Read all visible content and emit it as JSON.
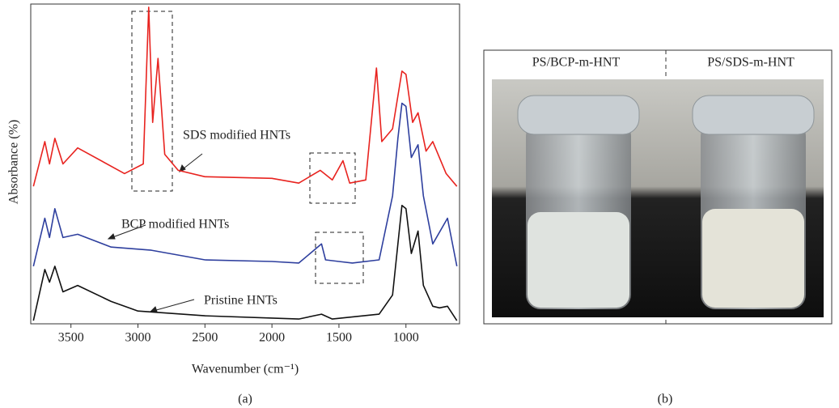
{
  "chart_data": {
    "type": "line",
    "x_label": "Wavenumber (cm⁻¹)",
    "y_label": "Absorbance (%)",
    "panel_a": "(a)",
    "panel_b": "(b)",
    "xlim": [
      3800,
      600
    ],
    "ylim": [
      0,
      100
    ],
    "xticks": [
      3500,
      3000,
      2500,
      2000,
      1500,
      1000
    ],
    "series": [
      {
        "name": "Pristine HNTs",
        "color": "#111111",
        "x": [
          3780,
          3695,
          3660,
          3620,
          3560,
          3450,
          3200,
          3000,
          2500,
          2000,
          1800,
          1630,
          1550,
          1200,
          1100,
          1060,
          1030,
          1000,
          960,
          910,
          870,
          800,
          750,
          690,
          620
        ],
        "values": [
          1,
          17,
          13,
          18,
          10,
          12,
          7,
          4,
          2.5,
          1.8,
          1.5,
          3,
          1.5,
          3,
          9,
          25,
          37,
          36,
          22,
          29,
          12,
          5.5,
          5,
          5.5,
          1
        ]
      },
      {
        "name": "BCP modified HNTs",
        "color": "#2e3f9e",
        "x": [
          3780,
          3695,
          3660,
          3620,
          3560,
          3450,
          3200,
          2900,
          2500,
          2000,
          1800,
          1630,
          1600,
          1500,
          1400,
          1200,
          1100,
          1060,
          1030,
          1000,
          960,
          910,
          870,
          800,
          690,
          620
        ],
        "values": [
          18,
          33,
          27,
          36,
          27,
          28,
          24,
          23,
          20,
          19.5,
          19,
          25,
          20,
          19.5,
          19,
          20,
          40,
          58,
          69,
          68,
          52,
          56,
          40,
          25,
          33,
          18
        ]
      },
      {
        "name": "SDS modified HNTs",
        "color": "#e8231f",
        "x": [
          3780,
          3695,
          3660,
          3620,
          3560,
          3450,
          3100,
          2960,
          2920,
          2890,
          2850,
          2800,
          2700,
          2500,
          2000,
          1800,
          1640,
          1550,
          1470,
          1420,
          1300,
          1220,
          1180,
          1100,
          1030,
          1000,
          950,
          910,
          850,
          800,
          700,
          620
        ],
        "values": [
          43,
          57,
          50,
          58,
          50,
          55,
          47,
          50,
          99,
          63,
          83,
          53,
          48,
          46,
          45.5,
          44,
          48,
          45,
          51,
          44,
          45,
          80,
          57,
          61,
          79,
          78,
          63,
          66,
          54,
          57,
          47,
          43
        ]
      }
    ],
    "photo_labels": [
      "PS/BCP-m-HNT",
      "PS/SDS-m-HNT"
    ]
  }
}
